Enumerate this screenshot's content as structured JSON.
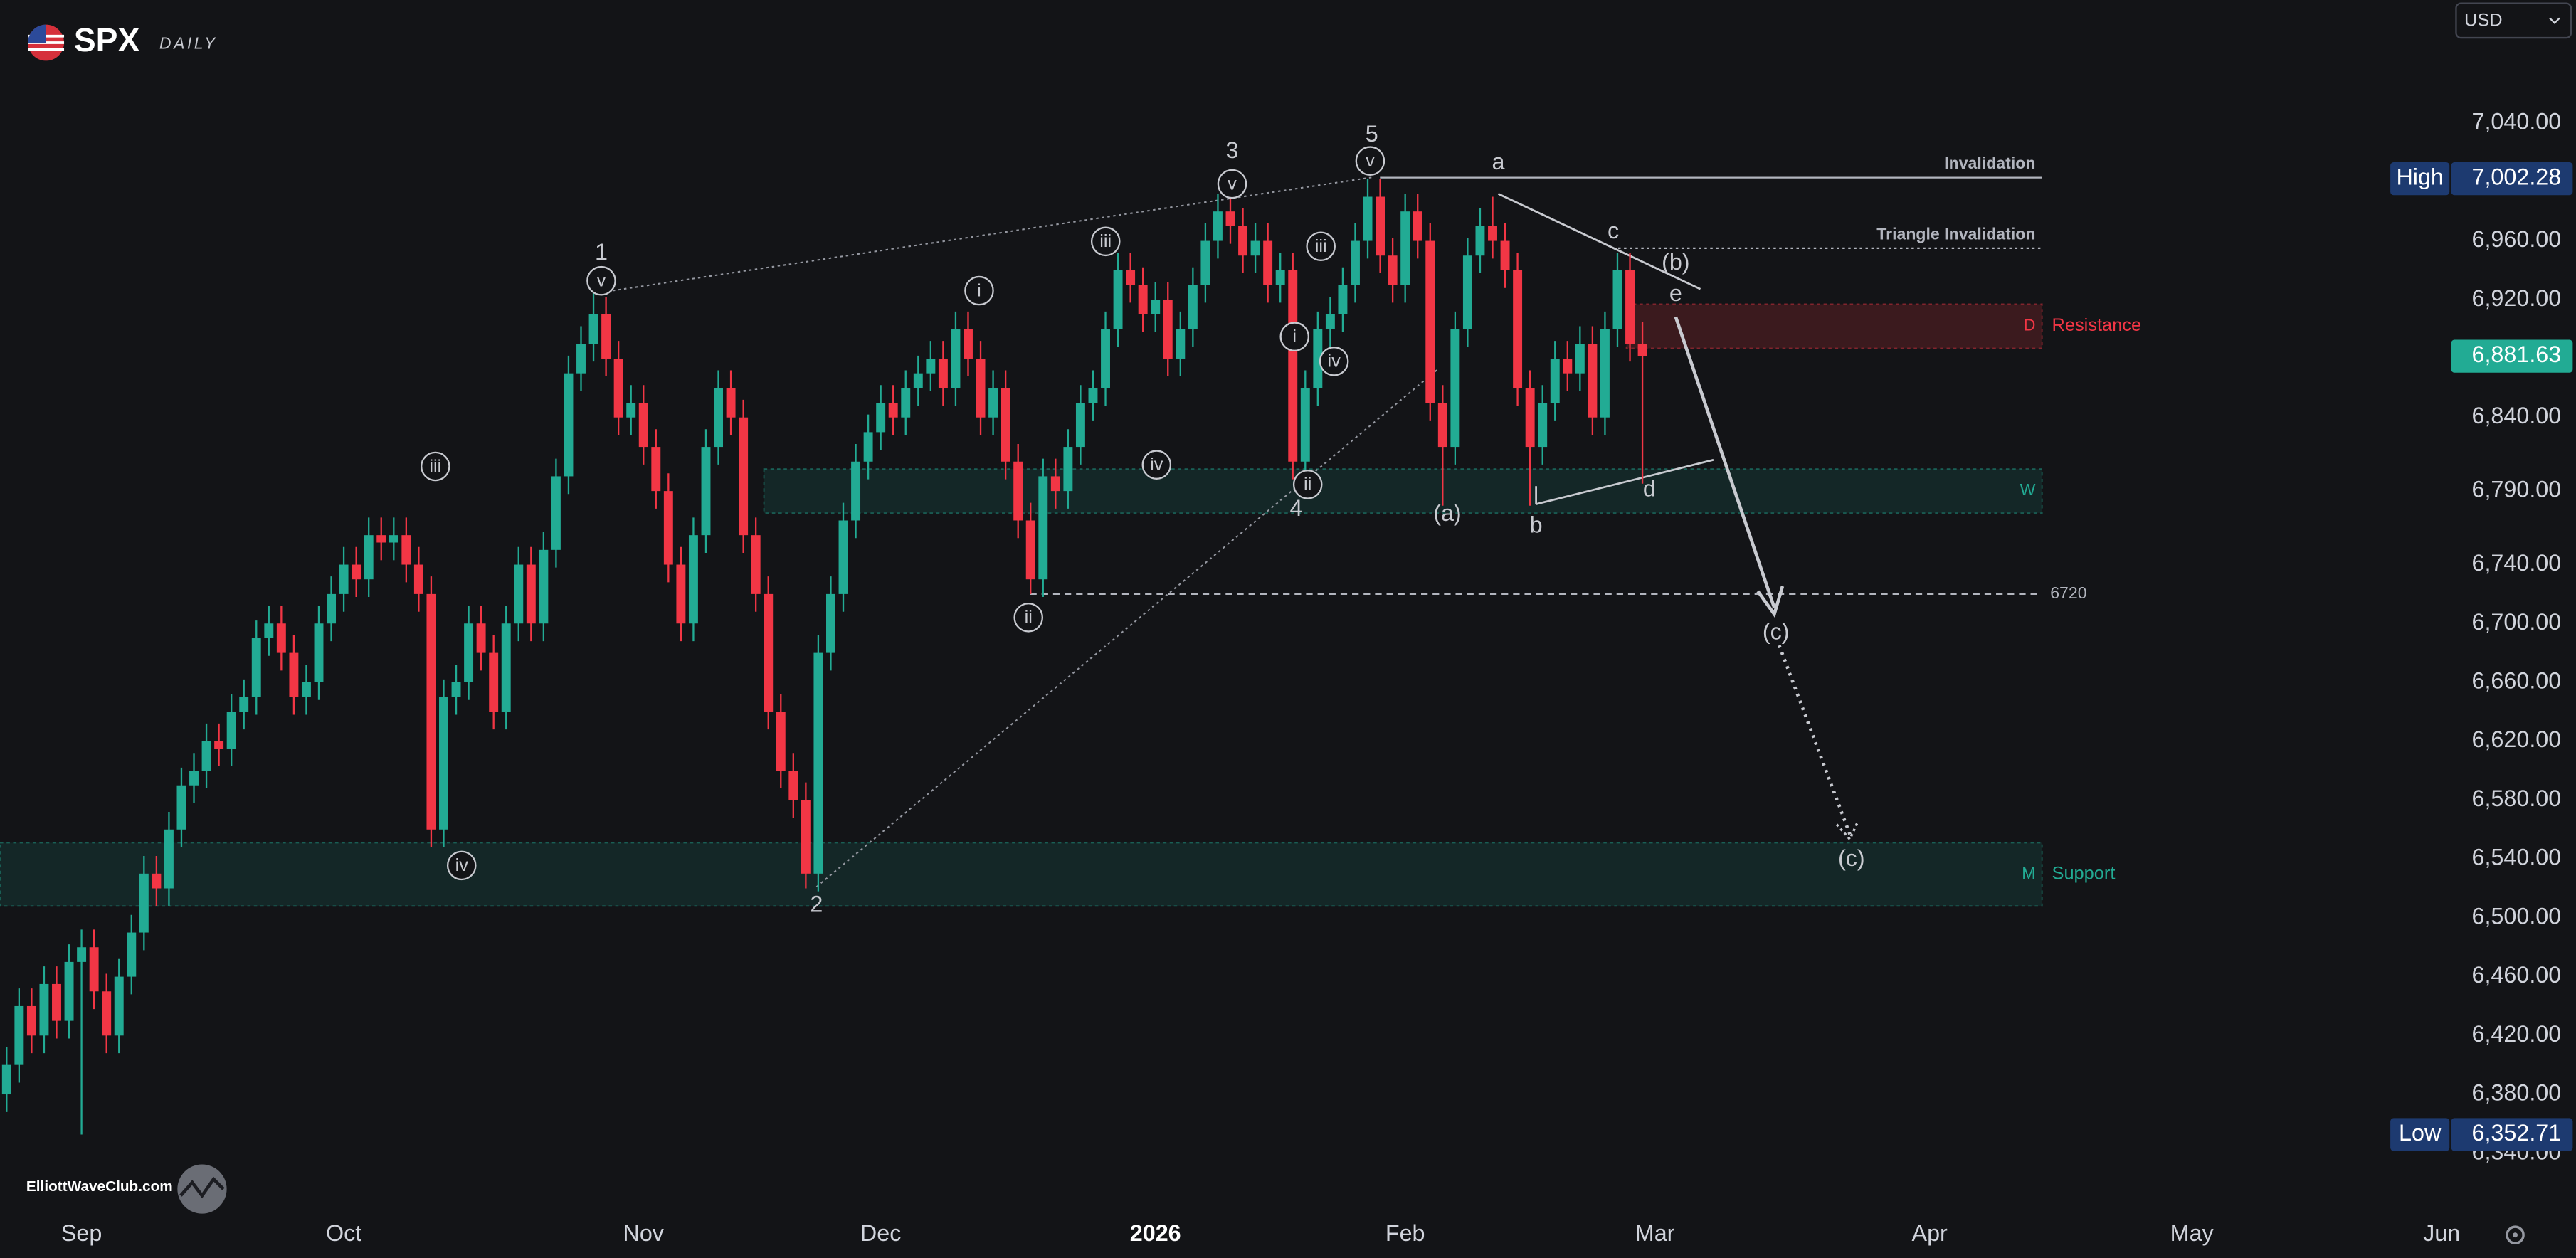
{
  "chart_data": {
    "type": "candlestick",
    "title": "SPX",
    "subtitle": "DAILY",
    "currency": "USD",
    "watermark": "ElliottWaveClub.com",
    "colors": {
      "up": "#22ab94",
      "down": "#f23645",
      "badge": "#1d3a70",
      "last": "#22ab94"
    },
    "xlim": [
      -0.53,
      195.5
    ],
    "xticks": [
      {
        "value": 6,
        "label": "Sep"
      },
      {
        "value": 27,
        "label": "Oct"
      },
      {
        "value": 51,
        "label": "Nov"
      },
      {
        "value": 70,
        "label": "Dec"
      },
      {
        "value": 92,
        "label": "2026"
      },
      {
        "value": 112,
        "label": "Feb"
      },
      {
        "value": 132,
        "label": "Mar"
      },
      {
        "value": 154,
        "label": "Apr"
      },
      {
        "value": 175,
        "label": "May"
      },
      {
        "value": 195,
        "label": "Jun"
      }
    ],
    "ylim": [
      6303.4,
      7123.7
    ],
    "yticks": [
      {
        "value": 7040,
        "label": "7,040.00"
      },
      {
        "value": 6960,
        "label": "6,960.00"
      },
      {
        "value": 6920,
        "label": "6,920.00"
      },
      {
        "value": 6840,
        "label": "6,840.00"
      },
      {
        "value": 6790,
        "label": "6,790.00"
      },
      {
        "value": 6740,
        "label": "6,740.00"
      },
      {
        "value": 6700,
        "label": "6,700.00"
      },
      {
        "value": 6660,
        "label": "6,660.00"
      },
      {
        "value": 6620,
        "label": "6,620.00"
      },
      {
        "value": 6580,
        "label": "6,580.00"
      },
      {
        "value": 6540,
        "label": "6,540.00"
      },
      {
        "value": 6500,
        "label": "6,500.00"
      },
      {
        "value": 6460,
        "label": "6,460.00"
      },
      {
        "value": 6420,
        "label": "6,420.00"
      },
      {
        "value": 6380,
        "label": "6,380.00"
      },
      {
        "value": 6340,
        "label": "6,340.00"
      }
    ],
    "ohlc": [
      [
        6380,
        6412,
        6368,
        6400
      ],
      [
        6400,
        6452,
        6388,
        6440
      ],
      [
        6440,
        6452,
        6408,
        6420
      ],
      [
        6420,
        6467,
        6408,
        6455
      ],
      [
        6455,
        6467,
        6418,
        6430
      ],
      [
        6430,
        6482,
        6418,
        6470
      ],
      [
        6470,
        6492,
        6352.71,
        6480
      ],
      [
        6480,
        6492,
        6438,
        6450
      ],
      [
        6450,
        6462,
        6408,
        6420
      ],
      [
        6420,
        6472,
        6408,
        6460
      ],
      [
        6460,
        6502,
        6448,
        6490
      ],
      [
        6490,
        6542,
        6478,
        6530
      ],
      [
        6530,
        6542,
        6508,
        6520
      ],
      [
        6520,
        6572,
        6508,
        6560
      ],
      [
        6560,
        6602,
        6548,
        6590
      ],
      [
        6590,
        6612,
        6578,
        6600
      ],
      [
        6600,
        6632,
        6588,
        6620
      ],
      [
        6620,
        6632,
        6603,
        6615
      ],
      [
        6615,
        6652,
        6603,
        6640
      ],
      [
        6640,
        6662,
        6628,
        6650
      ],
      [
        6650,
        6702,
        6638,
        6690
      ],
      [
        6690,
        6712,
        6678,
        6700
      ],
      [
        6700,
        6712,
        6668,
        6680
      ],
      [
        6680,
        6692,
        6638,
        6650
      ],
      [
        6650,
        6672,
        6638,
        6660
      ],
      [
        6660,
        6712,
        6648,
        6700
      ],
      [
        6700,
        6732,
        6688,
        6720
      ],
      [
        6720,
        6752,
        6708,
        6740
      ],
      [
        6740,
        6752,
        6718,
        6730
      ],
      [
        6730,
        6772,
        6718,
        6760
      ],
      [
        6760,
        6772,
        6743,
        6755
      ],
      [
        6755,
        6772,
        6743,
        6760
      ],
      [
        6760,
        6772,
        6728,
        6740
      ],
      [
        6740,
        6752,
        6708,
        6720
      ],
      [
        6720,
        6732,
        6548,
        6560
      ],
      [
        6560,
        6662,
        6548,
        6650
      ],
      [
        6650,
        6672,
        6638,
        6660
      ],
      [
        6660,
        6712,
        6648,
        6700
      ],
      [
        6700,
        6712,
        6668,
        6680
      ],
      [
        6680,
        6692,
        6628,
        6640
      ],
      [
        6640,
        6712,
        6628,
        6700
      ],
      [
        6700,
        6752,
        6688,
        6740
      ],
      [
        6740,
        6752,
        6688,
        6700
      ],
      [
        6700,
        6762,
        6688,
        6750
      ],
      [
        6750,
        6812,
        6738,
        6800
      ],
      [
        6800,
        6882,
        6788,
        6870
      ],
      [
        6870,
        6902,
        6858,
        6890
      ],
      [
        6890,
        6925,
        6878,
        6910
      ],
      [
        6910,
        6922,
        6868,
        6880
      ],
      [
        6880,
        6892,
        6828,
        6840
      ],
      [
        6840,
        6862,
        6828,
        6850
      ],
      [
        6850,
        6862,
        6808,
        6820
      ],
      [
        6820,
        6832,
        6778,
        6790
      ],
      [
        6790,
        6802,
        6728,
        6740
      ],
      [
        6740,
        6752,
        6688,
        6700
      ],
      [
        6700,
        6772,
        6688,
        6760
      ],
      [
        6760,
        6832,
        6748,
        6820
      ],
      [
        6820,
        6872,
        6808,
        6860
      ],
      [
        6860,
        6872,
        6828,
        6840
      ],
      [
        6840,
        6852,
        6748,
        6760
      ],
      [
        6760,
        6772,
        6708,
        6720
      ],
      [
        6720,
        6732,
        6628,
        6640
      ],
      [
        6640,
        6652,
        6588,
        6600
      ],
      [
        6600,
        6612,
        6568,
        6580
      ],
      [
        6580,
        6592,
        6520,
        6530
      ],
      [
        6530,
        6692,
        6518,
        6680
      ],
      [
        6680,
        6732,
        6668,
        6720
      ],
      [
        6720,
        6782,
        6708,
        6770
      ],
      [
        6770,
        6822,
        6758,
        6810
      ],
      [
        6810,
        6842,
        6798,
        6830
      ],
      [
        6830,
        6862,
        6818,
        6850
      ],
      [
        6850,
        6862,
        6828,
        6840
      ],
      [
        6840,
        6872,
        6828,
        6860
      ],
      [
        6860,
        6882,
        6848,
        6870
      ],
      [
        6870,
        6892,
        6858,
        6880
      ],
      [
        6880,
        6892,
        6848,
        6860
      ],
      [
        6860,
        6912,
        6848,
        6900
      ],
      [
        6900,
        6912,
        6868,
        6880
      ],
      [
        6880,
        6892,
        6828,
        6840
      ],
      [
        6840,
        6872,
        6828,
        6860
      ],
      [
        6860,
        6872,
        6798,
        6810
      ],
      [
        6810,
        6822,
        6758,
        6770
      ],
      [
        6770,
        6782,
        6720,
        6730
      ],
      [
        6730,
        6812,
        6718,
        6800
      ],
      [
        6800,
        6812,
        6778,
        6790
      ],
      [
        6790,
        6832,
        6778,
        6820
      ],
      [
        6820,
        6862,
        6808,
        6850
      ],
      [
        6850,
        6872,
        6838,
        6860
      ],
      [
        6860,
        6912,
        6848,
        6900
      ],
      [
        6900,
        6952,
        6888,
        6940
      ],
      [
        6940,
        6952,
        6918,
        6930
      ],
      [
        6930,
        6942,
        6898,
        6910
      ],
      [
        6910,
        6932,
        6898,
        6920
      ],
      [
        6920,
        6932,
        6868,
        6880
      ],
      [
        6880,
        6912,
        6868,
        6900
      ],
      [
        6900,
        6942,
        6888,
        6930
      ],
      [
        6930,
        6972,
        6918,
        6960
      ],
      [
        6960,
        6992,
        6948,
        6980
      ],
      [
        6980,
        6992,
        6958,
        6970
      ],
      [
        6970,
        6982,
        6938,
        6950
      ],
      [
        6950,
        6972,
        6938,
        6960
      ],
      [
        6960,
        6972,
        6918,
        6930
      ],
      [
        6930,
        6952,
        6918,
        6940
      ],
      [
        6940,
        6952,
        6798,
        6810
      ],
      [
        6810,
        6872,
        6798,
        6860
      ],
      [
        6860,
        6912,
        6848,
        6900
      ],
      [
        6900,
        6922,
        6888,
        6910
      ],
      [
        6910,
        6942,
        6898,
        6930
      ],
      [
        6930,
        6972,
        6918,
        6960
      ],
      [
        6960,
        7002.28,
        6948,
        6990
      ],
      [
        6990,
        7002,
        6938,
        6950
      ],
      [
        6950,
        6962,
        6918,
        6930
      ],
      [
        6930,
        6992,
        6918,
        6980
      ],
      [
        6980,
        6992,
        6948,
        6960
      ],
      [
        6960,
        6972,
        6838,
        6850
      ],
      [
        6850,
        6862,
        6780,
        6820
      ],
      [
        6820,
        6912,
        6808,
        6900
      ],
      [
        6900,
        6962,
        6888,
        6950
      ],
      [
        6950,
        6982,
        6938,
        6970
      ],
      [
        6970,
        6990,
        6948,
        6960
      ],
      [
        6960,
        6972,
        6928,
        6940
      ],
      [
        6940,
        6952,
        6848,
        6860
      ],
      [
        6860,
        6872,
        6780,
        6820
      ],
      [
        6820,
        6862,
        6808,
        6850
      ],
      [
        6850,
        6892,
        6838,
        6880
      ],
      [
        6880,
        6892,
        6858,
        6870
      ],
      [
        6870,
        6902,
        6858,
        6890
      ],
      [
        6890,
        6902,
        6828,
        6840
      ],
      [
        6840,
        6912,
        6828,
        6900
      ],
      [
        6900,
        6952,
        6888,
        6940
      ],
      [
        6940,
        6952,
        6878,
        6890
      ],
      [
        6890,
        6905,
        6795,
        6881.63
      ]
    ],
    "zones": [
      {
        "tag": "D",
        "label": "Resistance",
        "range": [
          6887,
          6917
        ]
      },
      {
        "tag": "W",
        "range": [
          6775,
          6805
        ]
      },
      {
        "tag": "M",
        "label": "Support",
        "range": [
          6508,
          6551
        ]
      }
    ],
    "levels": [
      {
        "label": "Invalidation",
        "value": 7003
      },
      {
        "label": "Triangle Invalidation",
        "value": 6955
      },
      {
        "value": 6720
      }
    ],
    "price_labels": {
      "high": {
        "name": "High",
        "value": 7002.28,
        "value_label": "7,002.28"
      },
      "last": {
        "value": 6881.63,
        "value_label": "6,881.63"
      },
      "low": {
        "name": "Low",
        "value": 6352.71,
        "value_label": "6,352.71"
      }
    },
    "wave_labels": [
      "1",
      "v",
      "iii",
      "iv",
      "2",
      "i",
      "ii",
      "iii",
      "iv",
      "3",
      "v",
      "i",
      "ii",
      "4",
      "iii",
      "iv",
      "5",
      "v",
      "a",
      "(a)",
      "b",
      "c",
      "(b)",
      "e",
      "d",
      "(c)",
      "(c)"
    ]
  }
}
